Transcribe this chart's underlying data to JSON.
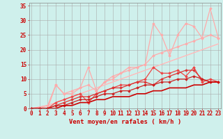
{
  "background_color": "#cff0ec",
  "grid_color": "#aaaaaa",
  "xlabel": "Vent moyen/en rafales ( km/h )",
  "xlabel_color": "#cc0000",
  "xlabel_fontsize": 6.5,
  "ylabel_ticks": [
    0,
    5,
    10,
    15,
    20,
    25,
    30,
    35
  ],
  "xticks": [
    0,
    1,
    2,
    3,
    4,
    5,
    6,
    7,
    8,
    9,
    10,
    11,
    12,
    13,
    14,
    15,
    16,
    17,
    18,
    19,
    20,
    21,
    22,
    23
  ],
  "xlim": [
    -0.3,
    23.3
  ],
  "ylim": [
    0,
    36
  ],
  "tick_color": "#cc0000",
  "tick_fontsize": 5.5,
  "lines": [
    {
      "x": [
        0,
        1,
        2,
        3,
        4,
        5,
        6,
        7,
        8,
        9,
        10,
        11,
        12,
        13,
        14,
        15,
        16,
        17,
        18,
        19,
        20,
        21,
        22,
        23
      ],
      "y": [
        0,
        0.5,
        1,
        2,
        3,
        4,
        5,
        6,
        7,
        8,
        9,
        10,
        11,
        12,
        13,
        14,
        15,
        16,
        17,
        18,
        19,
        20,
        21,
        22
      ],
      "color": "#ffbbbb",
      "lw": 0.8,
      "marker": null
    },
    {
      "x": [
        0,
        1,
        2,
        3,
        4,
        5,
        6,
        7,
        8,
        9,
        10,
        11,
        12,
        13,
        14,
        15,
        16,
        17,
        18,
        19,
        20,
        21,
        22,
        23
      ],
      "y": [
        0,
        0,
        1,
        2,
        3,
        4,
        5,
        6,
        7,
        8,
        9,
        10,
        11,
        12,
        13,
        14,
        15,
        16,
        17,
        18,
        19,
        20,
        21,
        22
      ],
      "color": "#ffbbbb",
      "lw": 0.8,
      "marker": null
    },
    {
      "x": [
        0,
        2,
        3,
        4,
        5,
        6,
        7,
        8,
        9,
        10,
        11,
        12,
        13,
        14,
        15,
        16,
        17,
        18,
        19,
        20,
        21,
        22,
        23
      ],
      "y": [
        0,
        1,
        8,
        5,
        5,
        7,
        14,
        6,
        9,
        10,
        12,
        14,
        14,
        15,
        29,
        25,
        18,
        25,
        29,
        28,
        24,
        34,
        24
      ],
      "color": "#ffaaaa",
      "lw": 0.9,
      "marker": "D"
    },
    {
      "x": [
        0,
        2,
        3,
        4,
        5,
        6,
        7,
        8,
        9,
        10,
        11,
        12,
        13,
        14,
        15,
        16,
        17,
        18,
        19,
        20,
        21,
        22,
        23
      ],
      "y": [
        0,
        0,
        8,
        5,
        6,
        7,
        8,
        6,
        9,
        11,
        12,
        13,
        14,
        15,
        18,
        19,
        20,
        21,
        22,
        23,
        24,
        25,
        24
      ],
      "color": "#ffaaaa",
      "lw": 0.9,
      "marker": "D"
    },
    {
      "x": [
        0,
        1,
        2,
        3,
        4,
        5,
        6,
        7,
        8,
        9,
        10,
        11,
        12,
        13,
        14,
        15,
        16,
        17,
        18,
        19,
        20,
        21,
        22,
        23
      ],
      "y": [
        0,
        0,
        0,
        2,
        3,
        4,
        5,
        2,
        5,
        6,
        7,
        8,
        8,
        9,
        10,
        14,
        12,
        12,
        13,
        11,
        14,
        9,
        10,
        9
      ],
      "color": "#ee4444",
      "lw": 0.9,
      "marker": "D"
    },
    {
      "x": [
        0,
        1,
        2,
        3,
        4,
        5,
        6,
        7,
        8,
        9,
        10,
        11,
        12,
        13,
        14,
        15,
        16,
        17,
        18,
        19,
        20,
        21,
        22,
        23
      ],
      "y": [
        0,
        0,
        0,
        1,
        2,
        3,
        4,
        4,
        5,
        6,
        7,
        7,
        8,
        9,
        9,
        8,
        10,
        11,
        12,
        13,
        13,
        10,
        9,
        9
      ],
      "color": "#dd3333",
      "lw": 0.9,
      "marker": "D"
    },
    {
      "x": [
        0,
        1,
        2,
        3,
        4,
        5,
        6,
        7,
        8,
        9,
        10,
        11,
        12,
        13,
        14,
        15,
        16,
        17,
        18,
        19,
        20,
        21,
        22,
        23
      ],
      "y": [
        0,
        0,
        0,
        1,
        1,
        2,
        3,
        3,
        4,
        5,
        5,
        6,
        6,
        7,
        8,
        8,
        9,
        9,
        10,
        10,
        11,
        10,
        9,
        9
      ],
      "color": "#cc2222",
      "lw": 0.9,
      "marker": "D"
    },
    {
      "x": [
        0,
        1,
        2,
        3,
        4,
        5,
        6,
        7,
        8,
        9,
        10,
        11,
        12,
        13,
        14,
        15,
        16,
        17,
        18,
        19,
        20,
        21,
        22,
        23
      ],
      "y": [
        0,
        0,
        0,
        0,
        1,
        1,
        2,
        2,
        3,
        3,
        4,
        4,
        4,
        5,
        5,
        6,
        6,
        7,
        7,
        7,
        8,
        8,
        9,
        9
      ],
      "color": "#cc0000",
      "lw": 1.2,
      "marker": null
    }
  ]
}
